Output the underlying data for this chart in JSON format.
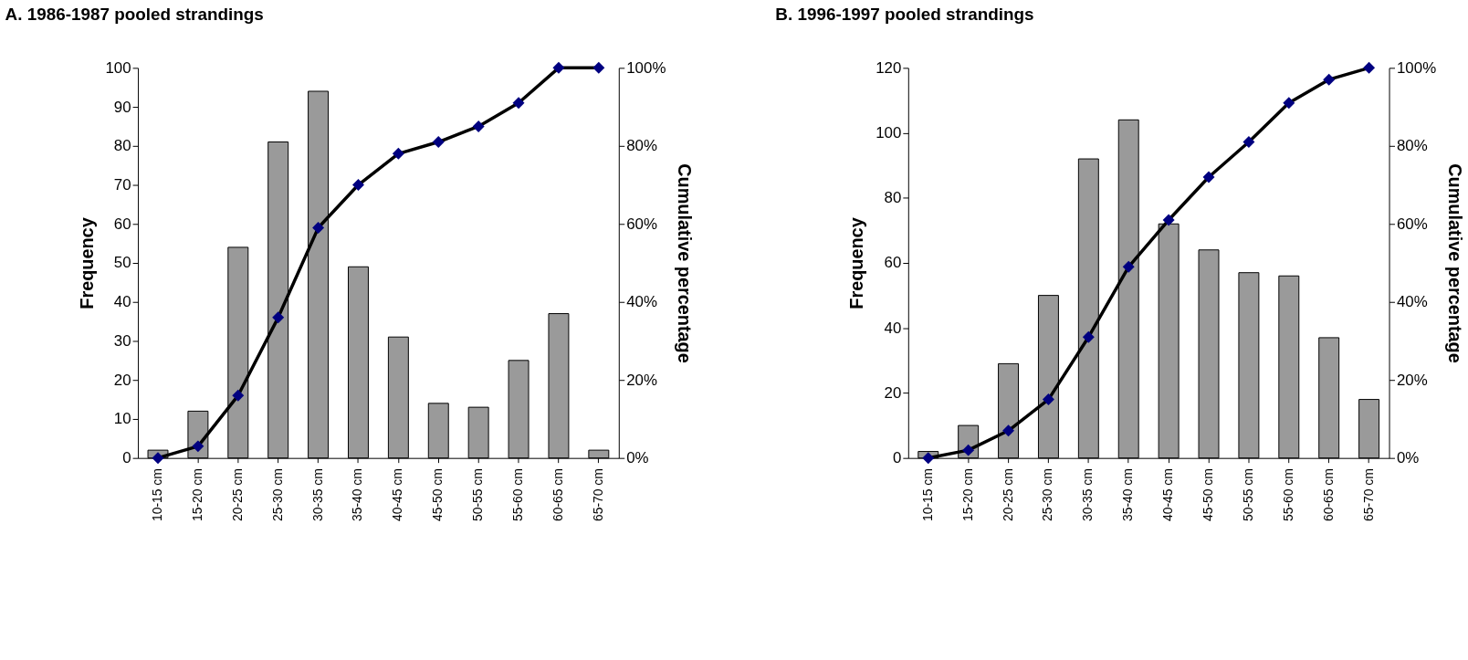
{
  "chart_data": [
    {
      "type": "bar",
      "title": "A. 1986-1987 pooled strandings",
      "ylabel": "Frequency",
      "y2label": "Cumulative percentage",
      "categories": [
        "10-15 cm",
        "15-20 cm",
        "20-25 cm",
        "25-30 cm",
        "30-35 cm",
        "35-40 cm",
        "40-45 cm",
        "45-50 cm",
        "50-55 cm",
        "55-60 cm",
        "60-65 cm",
        "65-70 cm"
      ],
      "series": [
        {
          "color": "#9a9a9a",
          "values": [
            2,
            12,
            54,
            81,
            94,
            49,
            31,
            14,
            13,
            25,
            37,
            2
          ]
        },
        {
          "type": "line",
          "axis": "y2",
          "color": "#000080",
          "values": [
            0,
            3,
            16,
            36,
            59,
            70,
            78,
            81,
            85,
            91,
            100,
            100
          ]
        }
      ],
      "ylim": [
        0,
        100
      ],
      "yticks": [
        0,
        10,
        20,
        30,
        40,
        50,
        60,
        70,
        80,
        90,
        100
      ],
      "y2lim": [
        0,
        100
      ],
      "y2ticks": [
        {
          "value": 0,
          "label": "0%"
        },
        {
          "value": 20,
          "label": "20%"
        },
        {
          "value": 40,
          "label": "40%"
        },
        {
          "value": 60,
          "label": "60%"
        },
        {
          "value": 80,
          "label": "80%"
        },
        {
          "value": 100,
          "label": "100%"
        }
      ],
      "marker": "diamond",
      "line_style": "solid",
      "grid": false
    },
    {
      "type": "bar",
      "title": "B. 1996-1997 pooled strandings",
      "ylabel": "Frequency",
      "y2label": "Cumulative percentage",
      "categories": [
        "10-15 cm",
        "15-20 cm",
        "20-25 cm",
        "25-30 cm",
        "30-35 cm",
        "35-40 cm",
        "40-45 cm",
        "45-50 cm",
        "50-55 cm",
        "55-60 cm",
        "60-65 cm",
        "65-70 cm"
      ],
      "series": [
        {
          "color": "#9a9a9a",
          "values": [
            2,
            10,
            29,
            50,
            92,
            104,
            72,
            64,
            57,
            56,
            37,
            18
          ]
        },
        {
          "type": "line",
          "axis": "y2",
          "color": "#000080",
          "values": [
            0,
            2,
            7,
            15,
            31,
            49,
            61,
            72,
            81,
            91,
            97,
            100
          ]
        }
      ],
      "ylim": [
        0,
        120
      ],
      "yticks": [
        0,
        20,
        40,
        60,
        80,
        100,
        120
      ],
      "y2lim": [
        0,
        100
      ],
      "y2ticks": [
        {
          "value": 0,
          "label": "0%"
        },
        {
          "value": 20,
          "label": "20%"
        },
        {
          "value": 40,
          "label": "40%"
        },
        {
          "value": 60,
          "label": "60%"
        },
        {
          "value": 80,
          "label": "80%"
        },
        {
          "value": 100,
          "label": "100%"
        }
      ],
      "marker": "diamond",
      "line_style": "solid",
      "grid": false
    }
  ]
}
